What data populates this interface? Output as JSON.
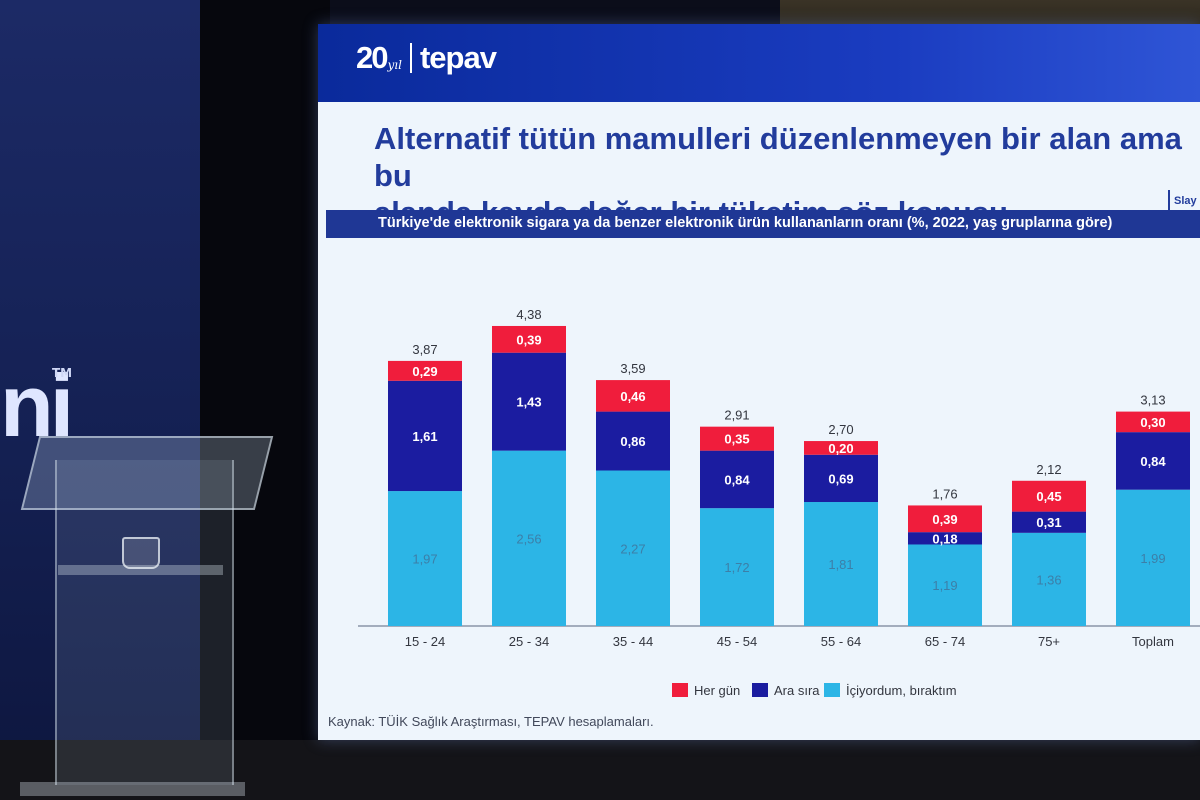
{
  "slide": {
    "logo_number": "20",
    "logo_suffix": "yıl",
    "logo_name": "tepav",
    "slide_label": "Slay",
    "title_line1": "Alternatif tütün mamulleri düzenlenmeyen bir alan ama bu",
    "title_line2": "alanda kayda değer bir tüketim söz konusu.",
    "source": "Kaynak: TÜİK Sağlık Araştırması, TEPAV hesaplamaları."
  },
  "left_screen": {
    "text": "ni",
    "tm": "TM"
  },
  "chart_data": {
    "type": "bar",
    "stacked": true,
    "title": "Türkiye'de elektronik sigara ya da benzer elektronik ürün kullananların oranı (%, 2022, yaş gruplarına göre)",
    "categories": [
      "15 - 24",
      "25 - 34",
      "35 - 44",
      "45 - 54",
      "55 - 64",
      "65 - 74",
      "75+",
      "Toplam"
    ],
    "totals": [
      "3,87",
      "4,38",
      "3,59",
      "2,91",
      "2,70",
      "1,76",
      "2,12",
      "3,13"
    ],
    "series": [
      {
        "name": "İçiyordum, bıraktım",
        "color": "#2cb5e6",
        "values": [
          1.97,
          2.56,
          2.27,
          1.72,
          1.81,
          1.19,
          1.36,
          1.99
        ],
        "labels": [
          "1,97",
          "2,56",
          "2,27",
          "1,72",
          "1,81",
          "1,19",
          "1,36",
          "1,99"
        ]
      },
      {
        "name": "Ara sıra",
        "color": "#1b1ca0",
        "values": [
          1.61,
          1.43,
          0.86,
          0.84,
          0.69,
          0.18,
          0.31,
          0.84
        ],
        "labels": [
          "1,61",
          "1,43",
          "0,86",
          "0,84",
          "0,69",
          "0,18",
          "0,31",
          "0,84"
        ]
      },
      {
        "name": "Her gün",
        "color": "#f01d3c",
        "values": [
          0.29,
          0.39,
          0.46,
          0.35,
          0.2,
          0.39,
          0.45,
          0.3
        ],
        "labels": [
          "0,29",
          "0,39",
          "0,46",
          "0,35",
          "0,20",
          "0,39",
          "0,45",
          "0,30"
        ]
      }
    ],
    "legend_order": [
      2,
      1,
      0
    ],
    "legend_position": "bottom"
  }
}
